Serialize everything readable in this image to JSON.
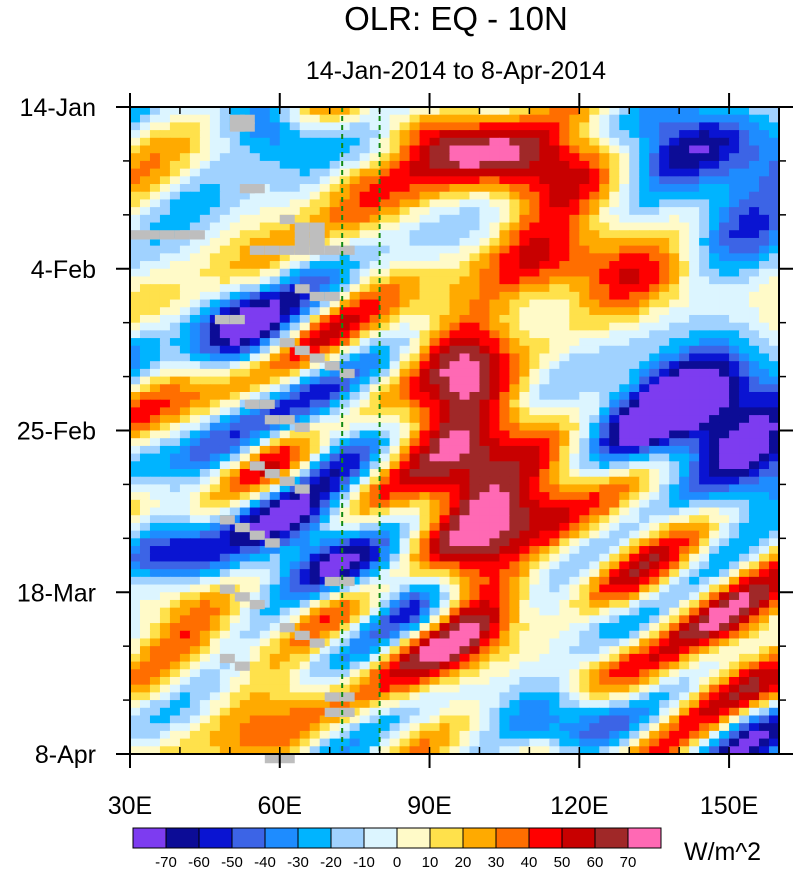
{
  "chart_data": {
    "type": "heatmap",
    "title": "OLR: EQ - 10N",
    "subtitle": "14-Jan-2014 to 8-Apr-2014",
    "x_axis": {
      "range": [
        30,
        160
      ],
      "ticks": [
        {
          "value": 30,
          "label": "30E"
        },
        {
          "value": 60,
          "label": "60E"
        },
        {
          "value": 90,
          "label": "90E"
        },
        {
          "value": 120,
          "label": "120E"
        },
        {
          "value": 150,
          "label": "150E"
        }
      ],
      "minor_step": 10
    },
    "y_axis": {
      "range_days": [
        0,
        84
      ],
      "ticks": [
        {
          "day": 0,
          "label": "14-Jan"
        },
        {
          "day": 21,
          "label": "4-Feb"
        },
        {
          "day": 42,
          "label": "25-Feb"
        },
        {
          "day": 63,
          "label": "18-Mar"
        },
        {
          "day": 84,
          "label": "8-Apr"
        }
      ],
      "minor_step_days": 7
    },
    "reference_lines_lon": [
      72.5,
      80
    ],
    "colorbar": {
      "unit": "W/m^2",
      "labels": [
        "-70",
        "-60",
        "-50",
        "-40",
        "-30",
        "-20",
        "-10",
        "0",
        "10",
        "20",
        "30",
        "40",
        "50",
        "60",
        "70"
      ],
      "colors": [
        "#7d3cf0",
        "#0c0c96",
        "#0a14d2",
        "#3c64e6",
        "#1e8cff",
        "#00b4ff",
        "#a0d2ff",
        "#dcf5ff",
        "#fffac8",
        "#ffe14b",
        "#ffaa00",
        "#ff6e00",
        "#ff0000",
        "#c80000",
        "#a02828",
        "#ff69b4"
      ]
    },
    "missing_color": "#bebebe",
    "anomaly_features": [
      {
        "lon": 112,
        "day": 8,
        "amp": 60,
        "slon": 12,
        "sday": 4
      },
      {
        "lon": 125,
        "day": 21,
        "amp": 55,
        "slon": 14,
        "sday": 4
      },
      {
        "lon": 100,
        "day": 6,
        "amp": 30,
        "slon": 12,
        "sday": 3
      },
      {
        "lon": 85,
        "day": 2,
        "amp": 35,
        "slon": 6,
        "sday": 2
      },
      {
        "lon": 95,
        "day": 32,
        "amp": 50,
        "slon": 8,
        "sday": 5
      },
      {
        "lon": 97,
        "day": 53,
        "amp": 60,
        "slon": 8,
        "sday": 9
      },
      {
        "lon": 105,
        "day": 44,
        "amp": 45,
        "slon": 10,
        "sday": 7
      },
      {
        "lon": 125,
        "day": 55,
        "amp": 25,
        "slon": 12,
        "sday": 6
      },
      {
        "lon": 150,
        "day": 68,
        "amp": 45,
        "slon": 14,
        "sday": 5
      },
      {
        "lon": 135,
        "day": 77,
        "amp": 40,
        "slon": 10,
        "sday": 4
      },
      {
        "lon": 95,
        "day": 70,
        "amp": 38,
        "slon": 12,
        "sday": 5
      },
      {
        "lon": 110,
        "day": 84,
        "amp": 35,
        "slon": 10,
        "sday": 3
      },
      {
        "lon": 75,
        "day": 10,
        "amp": 22,
        "slon": 6,
        "sday": 6
      },
      {
        "lon": 40,
        "day": 64,
        "amp": 22,
        "slon": 8,
        "sday": 4
      },
      {
        "lon": 55,
        "day": 78,
        "amp": 22,
        "slon": 10,
        "sday": 5
      },
      {
        "lon": 38,
        "day": 28,
        "amp": 14,
        "slon": 6,
        "sday": 5
      },
      {
        "lon": 60,
        "day": 3,
        "amp": -55,
        "slon": 7,
        "sday": 3
      },
      {
        "lon": 145,
        "day": 5,
        "amp": -60,
        "slon": 12,
        "sday": 4
      },
      {
        "lon": 150,
        "day": 15,
        "amp": -40,
        "slon": 12,
        "sday": 5
      },
      {
        "lon": 50,
        "day": 28,
        "amp": -55,
        "slon": 8,
        "sday": 4
      },
      {
        "lon": 145,
        "day": 36,
        "amp": -55,
        "slon": 12,
        "sday": 5
      },
      {
        "lon": 150,
        "day": 44,
        "amp": -65,
        "slon": 12,
        "sday": 5
      },
      {
        "lon": 125,
        "day": 40,
        "amp": -35,
        "slon": 12,
        "sday": 4
      },
      {
        "lon": 60,
        "day": 54,
        "amp": -50,
        "slon": 10,
        "sday": 3
      },
      {
        "lon": 40,
        "day": 58,
        "amp": -55,
        "slon": 8,
        "sday": 3
      },
      {
        "lon": 75,
        "day": 60,
        "amp": -55,
        "slon": 10,
        "sday": 3
      },
      {
        "lon": 115,
        "day": 80,
        "amp": -60,
        "slon": 10,
        "sday": 4
      },
      {
        "lon": 145,
        "day": 80,
        "amp": -40,
        "slon": 10,
        "sday": 3
      },
      {
        "lon": 125,
        "day": 67,
        "amp": -30,
        "slon": 10,
        "sday": 3
      },
      {
        "lon": 70,
        "day": 42,
        "amp": -35,
        "slon": 6,
        "sday": 4
      },
      {
        "lon": 88,
        "day": 65,
        "amp": -30,
        "slon": 6,
        "sday": 3
      }
    ],
    "missing_cells": [
      [
        50,
        1
      ],
      [
        52,
        1
      ],
      [
        50,
        2
      ],
      [
        52,
        2
      ],
      [
        52,
        10
      ],
      [
        54,
        10
      ],
      [
        60,
        14
      ],
      [
        63,
        15
      ],
      [
        66,
        15
      ],
      [
        63,
        16
      ],
      [
        66,
        16
      ],
      [
        30,
        16
      ],
      [
        33,
        16
      ],
      [
        36,
        16
      ],
      [
        39,
        16
      ],
      [
        42,
        16
      ],
      [
        54,
        18
      ],
      [
        57,
        18
      ],
      [
        60,
        18
      ],
      [
        63,
        18
      ],
      [
        66,
        18
      ],
      [
        69,
        18
      ],
      [
        72,
        18
      ],
      [
        63,
        17
      ],
      [
        66,
        17
      ],
      [
        63,
        23
      ],
      [
        66,
        24
      ],
      [
        69,
        24
      ],
      [
        47,
        27
      ],
      [
        50,
        27
      ],
      [
        60,
        30
      ],
      [
        63,
        31
      ],
      [
        66,
        32
      ],
      [
        69,
        33
      ],
      [
        72,
        34
      ],
      [
        53,
        38
      ],
      [
        56,
        38
      ],
      [
        57,
        40
      ],
      [
        60,
        40
      ],
      [
        63,
        41
      ],
      [
        54,
        46
      ],
      [
        57,
        47
      ],
      [
        60,
        48
      ],
      [
        63,
        49
      ],
      [
        48,
        53
      ],
      [
        51,
        54
      ],
      [
        54,
        55
      ],
      [
        57,
        56
      ],
      [
        69,
        61
      ],
      [
        72,
        61
      ],
      [
        48,
        62
      ],
      [
        51,
        63
      ],
      [
        54,
        64
      ],
      [
        60,
        67
      ],
      [
        63,
        68
      ],
      [
        66,
        69
      ],
      [
        48,
        71
      ],
      [
        51,
        72
      ],
      [
        69,
        76
      ],
      [
        72,
        76
      ],
      [
        69,
        78
      ],
      [
        72,
        78
      ],
      [
        57,
        84
      ],
      [
        60,
        84
      ]
    ]
  }
}
